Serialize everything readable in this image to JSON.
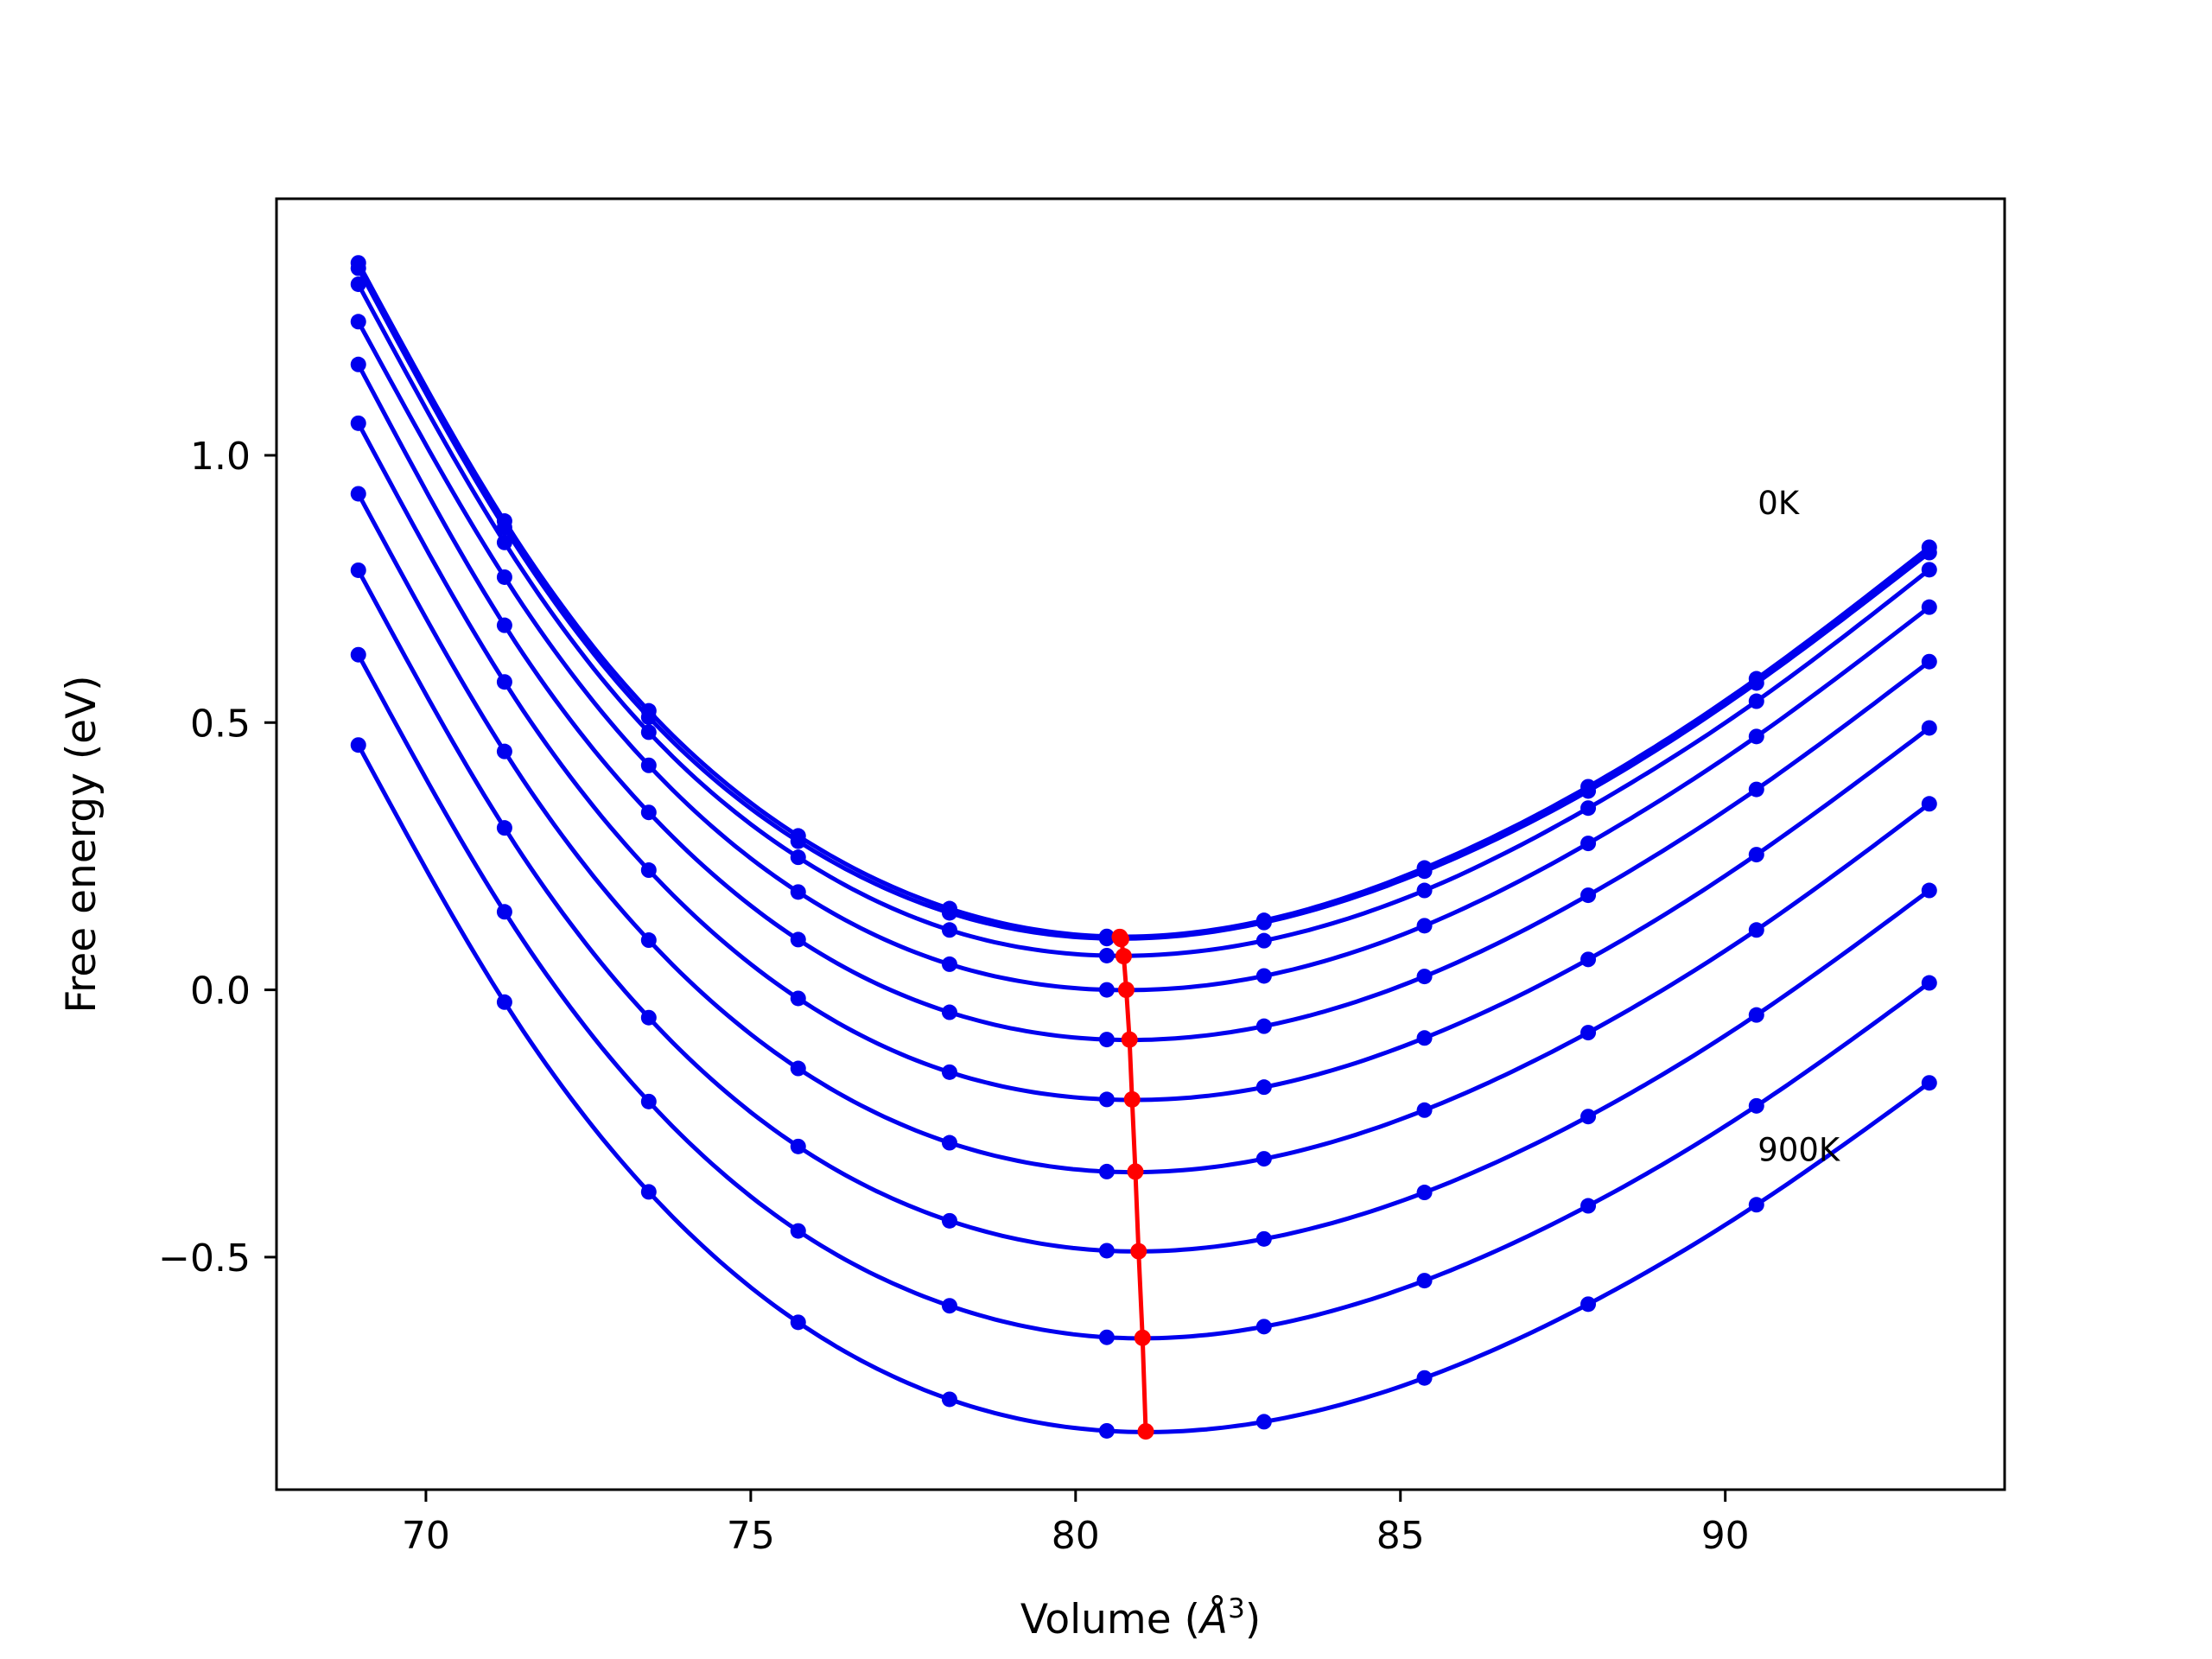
{
  "chart_data": {
    "type": "line",
    "title": "",
    "xlabel": "Volume (",
    "xlabel_symbol": "Å",
    "xlabel_power": "3",
    "xlabel_close": ")",
    "ylabel": "Free energy (eV)",
    "xlim": [
      67.7,
      94.3
    ],
    "ylim": [
      -0.935,
      1.48
    ],
    "grid": false,
    "legend": "none",
    "x_ticks": [
      70,
      75,
      80,
      85,
      90
    ],
    "x_tick_labels": [
      "70",
      "75",
      "80",
      "85",
      "90"
    ],
    "y_ticks": [
      1.0,
      0.5,
      0.0,
      -0.5
    ],
    "y_tick_labels": [
      "1.0",
      "0.5",
      "0.0",
      "−0.5"
    ],
    "colors": {
      "curves": "#0000ee",
      "minima": "#ff0000"
    },
    "annotations": [
      {
        "text": "0K",
        "x": 90.5,
        "y": 0.89
      },
      {
        "text": "900K",
        "x": 90.5,
        "y": -0.32
      }
    ],
    "x": [
      68.96,
      71.21,
      73.43,
      75.73,
      78.06,
      80.48,
      82.9,
      85.37,
      87.89,
      90.48,
      93.14
    ],
    "series": [
      {
        "values": [
          1.36,
          0.877,
          0.522,
          0.288,
          0.152,
          0.1,
          0.13,
          0.228,
          0.38,
          0.582,
          0.828
        ]
      },
      {
        "values": [
          1.35,
          0.865,
          0.51,
          0.278,
          0.144,
          0.096,
          0.126,
          0.222,
          0.372,
          0.574,
          0.818
        ]
      },
      {
        "values": [
          1.32,
          0.837,
          0.482,
          0.248,
          0.112,
          0.064,
          0.092,
          0.186,
          0.34,
          0.54,
          0.786
        ]
      },
      {
        "values": [
          1.25,
          0.772,
          0.42,
          0.183,
          0.048,
          0.0,
          0.026,
          0.12,
          0.274,
          0.474,
          0.716
        ]
      },
      {
        "values": [
          1.17,
          0.682,
          0.332,
          0.094,
          -0.042,
          -0.093,
          -0.068,
          0.025,
          0.177,
          0.375,
          0.614
        ]
      },
      {
        "values": [
          1.06,
          0.576,
          0.224,
          -0.016,
          -0.154,
          -0.205,
          -0.182,
          -0.09,
          0.057,
          0.253,
          0.49
        ]
      },
      {
        "values": [
          0.928,
          0.446,
          0.093,
          -0.147,
          -0.286,
          -0.34,
          -0.316,
          -0.225,
          -0.08,
          0.112,
          0.348
        ]
      },
      {
        "values": [
          0.785,
          0.303,
          -0.052,
          -0.293,
          -0.432,
          -0.488,
          -0.466,
          -0.379,
          -0.237,
          -0.047,
          0.186
        ]
      },
      {
        "values": [
          0.627,
          0.146,
          -0.209,
          -0.451,
          -0.591,
          -0.65,
          -0.63,
          -0.544,
          -0.404,
          -0.217,
          0.013
        ]
      },
      {
        "values": [
          0.458,
          -0.023,
          -0.378,
          -0.622,
          -0.766,
          -0.825,
          -0.808,
          -0.726,
          -0.588,
          -0.402,
          -0.174
        ]
      }
    ],
    "minima": {
      "x": [
        80.68,
        80.7,
        80.74,
        80.78,
        80.83,
        80.87,
        80.92,
        80.97,
        81.03,
        81.08
      ],
      "y": [
        0.099,
        0.095,
        0.063,
        0.0,
        -0.093,
        -0.205,
        -0.34,
        -0.489,
        -0.651,
        -0.826
      ]
    }
  }
}
